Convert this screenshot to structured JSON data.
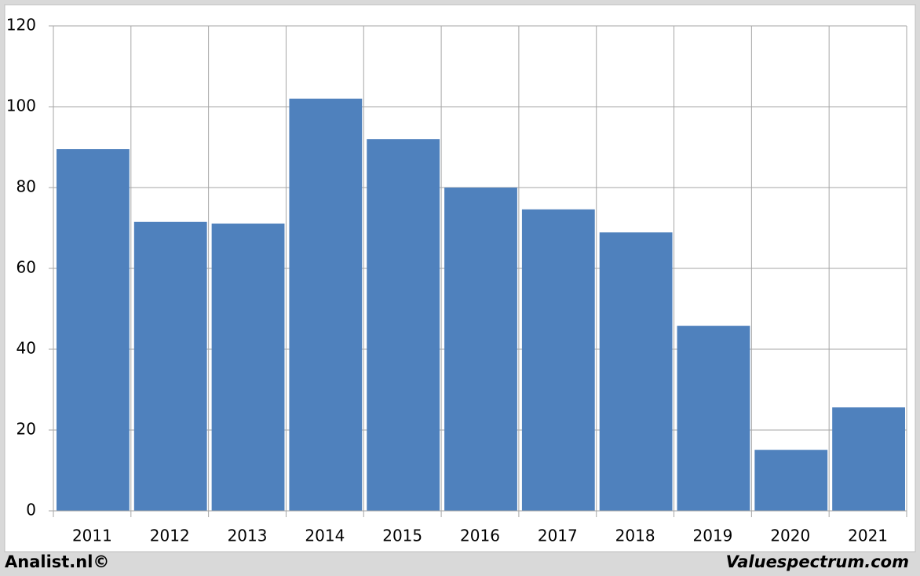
{
  "chart_data": {
    "type": "bar",
    "categories": [
      "2011",
      "2012",
      "2013",
      "2014",
      "2015",
      "2016",
      "2017",
      "2018",
      "2019",
      "2020",
      "2021"
    ],
    "values": [
      89.5,
      71.5,
      71.1,
      102,
      92,
      80,
      74.6,
      68.9,
      45.8,
      15.1,
      25.6
    ],
    "color": "#4f81bd",
    "ylim": [
      0,
      120
    ],
    "yticks": [
      0,
      20,
      40,
      60,
      80,
      100,
      120
    ],
    "grid": true,
    "source_left": "Analist.nl©",
    "source_right": "Valuespectrum.com"
  }
}
